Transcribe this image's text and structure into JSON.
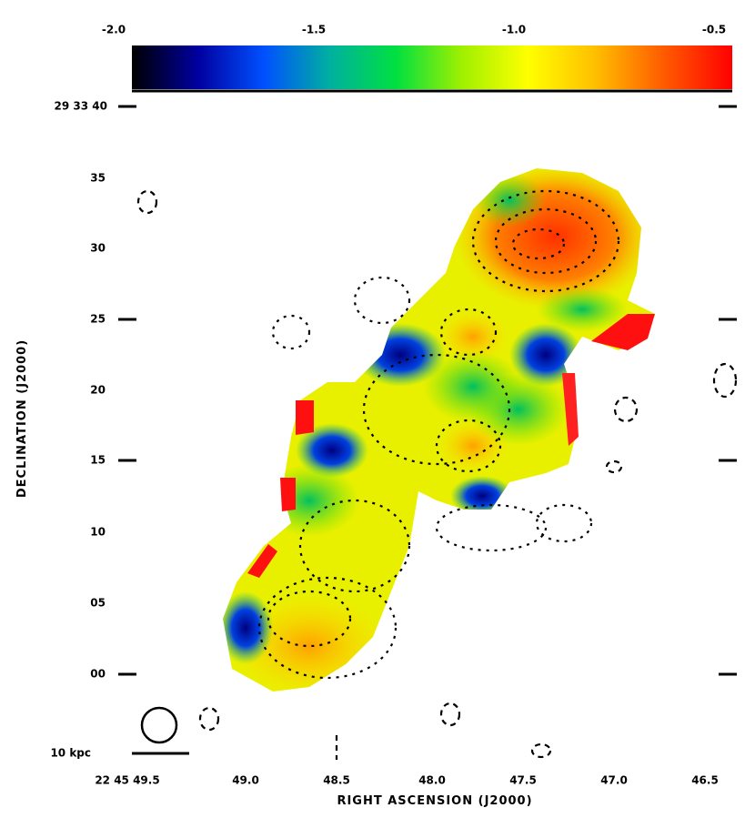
{
  "colormap": {
    "stops": [
      "#000000",
      "#0000a0",
      "#0050ff",
      "#00b0a0",
      "#00e040",
      "#a0f000",
      "#ffff00",
      "#ffc000",
      "#ff6000",
      "#ff0000"
    ]
  },
  "chart_data": {
    "type": "heatmap",
    "title": "",
    "colorbar": {
      "tick_labels": [
        "-2.0",
        "-1.5",
        "-1.0",
        "-0.5"
      ],
      "range": [
        -2.0,
        -0.5
      ]
    },
    "xlabel": "RIGHT ASCENSION (J2000)",
    "ylabel": "DECLINATION (J2000)",
    "x_ticks": [
      "22 45 49.5",
      "49.0",
      "48.5",
      "48.0",
      "47.5",
      "47.0",
      "46.5"
    ],
    "y_ticks": [
      "29 33 40",
      "35",
      "30",
      "25",
      "20",
      "15",
      "10",
      "05",
      "00"
    ],
    "scale_bar_label": "10 kpc",
    "grid": false
  }
}
